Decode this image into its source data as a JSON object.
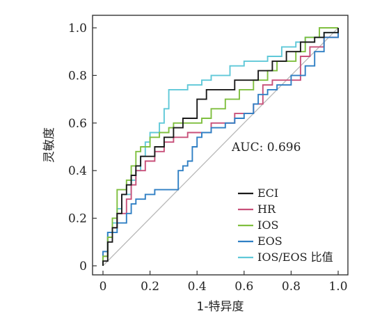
{
  "chart_data": {
    "type": "line",
    "xlabel": "1-特异度",
    "ylabel": "灵敏度",
    "xlim": [
      0,
      1
    ],
    "ylim": [
      0,
      1
    ],
    "xticks": [
      "0",
      "0.2",
      "0.4",
      "0.6",
      "0.8",
      "1.0"
    ],
    "yticks": [
      "0",
      "0.2",
      "0.4",
      "0.6",
      "0.8",
      "1.0"
    ],
    "annotation": "AUC: 0.696",
    "legend_position": "bottom-right",
    "reference_line": true,
    "series": [
      {
        "name": "ECI",
        "color": "#1a1a1a",
        "points": [
          [
            0,
            0
          ],
          [
            0,
            0.02
          ],
          [
            0.02,
            0.02
          ],
          [
            0.02,
            0.1
          ],
          [
            0.04,
            0.1
          ],
          [
            0.04,
            0.16
          ],
          [
            0.06,
            0.16
          ],
          [
            0.06,
            0.22
          ],
          [
            0.08,
            0.22
          ],
          [
            0.08,
            0.3
          ],
          [
            0.1,
            0.3
          ],
          [
            0.1,
            0.34
          ],
          [
            0.12,
            0.34
          ],
          [
            0.12,
            0.38
          ],
          [
            0.14,
            0.38
          ],
          [
            0.14,
            0.42
          ],
          [
            0.16,
            0.42
          ],
          [
            0.16,
            0.46
          ],
          [
            0.22,
            0.46
          ],
          [
            0.22,
            0.5
          ],
          [
            0.26,
            0.5
          ],
          [
            0.26,
            0.54
          ],
          [
            0.3,
            0.54
          ],
          [
            0.3,
            0.58
          ],
          [
            0.34,
            0.58
          ],
          [
            0.34,
            0.62
          ],
          [
            0.4,
            0.62
          ],
          [
            0.4,
            0.7
          ],
          [
            0.44,
            0.7
          ],
          [
            0.44,
            0.74
          ],
          [
            0.56,
            0.74
          ],
          [
            0.56,
            0.78
          ],
          [
            0.66,
            0.78
          ],
          [
            0.66,
            0.82
          ],
          [
            0.72,
            0.82
          ],
          [
            0.72,
            0.86
          ],
          [
            0.78,
            0.86
          ],
          [
            0.78,
            0.9
          ],
          [
            0.84,
            0.9
          ],
          [
            0.84,
            0.94
          ],
          [
            0.9,
            0.94
          ],
          [
            0.9,
            0.96
          ],
          [
            0.94,
            0.96
          ],
          [
            0.94,
            0.98
          ],
          [
            1,
            0.98
          ],
          [
            1,
            1
          ]
        ]
      },
      {
        "name": "HR",
        "color": "#c8507a",
        "points": [
          [
            0,
            0
          ],
          [
            0,
            0.04
          ],
          [
            0.02,
            0.04
          ],
          [
            0.02,
            0.12
          ],
          [
            0.04,
            0.12
          ],
          [
            0.04,
            0.16
          ],
          [
            0.06,
            0.16
          ],
          [
            0.06,
            0.22
          ],
          [
            0.1,
            0.22
          ],
          [
            0.1,
            0.28
          ],
          [
            0.12,
            0.28
          ],
          [
            0.12,
            0.34
          ],
          [
            0.14,
            0.34
          ],
          [
            0.14,
            0.4
          ],
          [
            0.18,
            0.4
          ],
          [
            0.18,
            0.44
          ],
          [
            0.22,
            0.44
          ],
          [
            0.22,
            0.48
          ],
          [
            0.26,
            0.48
          ],
          [
            0.26,
            0.52
          ],
          [
            0.3,
            0.52
          ],
          [
            0.3,
            0.54
          ],
          [
            0.36,
            0.54
          ],
          [
            0.36,
            0.56
          ],
          [
            0.46,
            0.56
          ],
          [
            0.46,
            0.6
          ],
          [
            0.56,
            0.6
          ],
          [
            0.56,
            0.64
          ],
          [
            0.64,
            0.64
          ],
          [
            0.64,
            0.68
          ],
          [
            0.68,
            0.68
          ],
          [
            0.68,
            0.76
          ],
          [
            0.72,
            0.76
          ],
          [
            0.72,
            0.78
          ],
          [
            0.84,
            0.78
          ],
          [
            0.84,
            0.88
          ],
          [
            0.88,
            0.88
          ],
          [
            0.88,
            0.92
          ],
          [
            0.94,
            0.92
          ],
          [
            0.94,
            0.96
          ],
          [
            1,
            0.96
          ],
          [
            1,
            1
          ]
        ]
      },
      {
        "name": "IOS",
        "color": "#7fbf3f",
        "points": [
          [
            0,
            0
          ],
          [
            0,
            0.04
          ],
          [
            0.02,
            0.04
          ],
          [
            0.02,
            0.12
          ],
          [
            0.04,
            0.12
          ],
          [
            0.04,
            0.2
          ],
          [
            0.06,
            0.2
          ],
          [
            0.06,
            0.32
          ],
          [
            0.1,
            0.32
          ],
          [
            0.1,
            0.36
          ],
          [
            0.12,
            0.36
          ],
          [
            0.12,
            0.42
          ],
          [
            0.14,
            0.42
          ],
          [
            0.14,
            0.48
          ],
          [
            0.16,
            0.48
          ],
          [
            0.16,
            0.5
          ],
          [
            0.2,
            0.5
          ],
          [
            0.2,
            0.54
          ],
          [
            0.24,
            0.54
          ],
          [
            0.24,
            0.56
          ],
          [
            0.28,
            0.56
          ],
          [
            0.28,
            0.58
          ],
          [
            0.3,
            0.58
          ],
          [
            0.3,
            0.6
          ],
          [
            0.42,
            0.6
          ],
          [
            0.42,
            0.62
          ],
          [
            0.46,
            0.62
          ],
          [
            0.46,
            0.66
          ],
          [
            0.52,
            0.66
          ],
          [
            0.52,
            0.7
          ],
          [
            0.58,
            0.7
          ],
          [
            0.58,
            0.74
          ],
          [
            0.64,
            0.74
          ],
          [
            0.64,
            0.78
          ],
          [
            0.7,
            0.78
          ],
          [
            0.7,
            0.82
          ],
          [
            0.74,
            0.82
          ],
          [
            0.74,
            0.86
          ],
          [
            0.82,
            0.86
          ],
          [
            0.82,
            0.9
          ],
          [
            0.86,
            0.9
          ],
          [
            0.86,
            0.96
          ],
          [
            0.92,
            0.96
          ],
          [
            0.92,
            1
          ],
          [
            1,
            1
          ]
        ]
      },
      {
        "name": "EOS",
        "color": "#2f7fc4",
        "points": [
          [
            0,
            0
          ],
          [
            0,
            0.06
          ],
          [
            0.02,
            0.06
          ],
          [
            0.02,
            0.14
          ],
          [
            0.06,
            0.14
          ],
          [
            0.06,
            0.18
          ],
          [
            0.1,
            0.18
          ],
          [
            0.1,
            0.22
          ],
          [
            0.12,
            0.22
          ],
          [
            0.12,
            0.26
          ],
          [
            0.14,
            0.26
          ],
          [
            0.14,
            0.28
          ],
          [
            0.18,
            0.28
          ],
          [
            0.18,
            0.3
          ],
          [
            0.22,
            0.3
          ],
          [
            0.22,
            0.32
          ],
          [
            0.32,
            0.32
          ],
          [
            0.32,
            0.4
          ],
          [
            0.34,
            0.4
          ],
          [
            0.34,
            0.42
          ],
          [
            0.36,
            0.42
          ],
          [
            0.36,
            0.44
          ],
          [
            0.38,
            0.44
          ],
          [
            0.38,
            0.5
          ],
          [
            0.4,
            0.5
          ],
          [
            0.4,
            0.54
          ],
          [
            0.42,
            0.54
          ],
          [
            0.42,
            0.56
          ],
          [
            0.46,
            0.56
          ],
          [
            0.46,
            0.58
          ],
          [
            0.52,
            0.58
          ],
          [
            0.52,
            0.6
          ],
          [
            0.56,
            0.6
          ],
          [
            0.56,
            0.62
          ],
          [
            0.6,
            0.62
          ],
          [
            0.6,
            0.64
          ],
          [
            0.64,
            0.64
          ],
          [
            0.64,
            0.68
          ],
          [
            0.66,
            0.68
          ],
          [
            0.66,
            0.72
          ],
          [
            0.7,
            0.72
          ],
          [
            0.7,
            0.74
          ],
          [
            0.74,
            0.74
          ],
          [
            0.74,
            0.76
          ],
          [
            0.8,
            0.76
          ],
          [
            0.8,
            0.8
          ],
          [
            0.86,
            0.8
          ],
          [
            0.86,
            0.84
          ],
          [
            0.9,
            0.84
          ],
          [
            0.9,
            0.9
          ],
          [
            0.94,
            0.9
          ],
          [
            0.94,
            0.96
          ],
          [
            1,
            0.96
          ],
          [
            1,
            1
          ]
        ]
      },
      {
        "name": "IOS/EOS 比值",
        "color": "#5fc8d8",
        "points": [
          [
            0,
            0
          ],
          [
            0,
            0.04
          ],
          [
            0.02,
            0.04
          ],
          [
            0.02,
            0.14
          ],
          [
            0.04,
            0.14
          ],
          [
            0.04,
            0.18
          ],
          [
            0.06,
            0.18
          ],
          [
            0.06,
            0.24
          ],
          [
            0.08,
            0.24
          ],
          [
            0.08,
            0.3
          ],
          [
            0.12,
            0.3
          ],
          [
            0.12,
            0.36
          ],
          [
            0.14,
            0.36
          ],
          [
            0.14,
            0.4
          ],
          [
            0.16,
            0.4
          ],
          [
            0.16,
            0.46
          ],
          [
            0.18,
            0.46
          ],
          [
            0.18,
            0.52
          ],
          [
            0.2,
            0.52
          ],
          [
            0.2,
            0.56
          ],
          [
            0.24,
            0.56
          ],
          [
            0.24,
            0.6
          ],
          [
            0.26,
            0.6
          ],
          [
            0.26,
            0.66
          ],
          [
            0.28,
            0.66
          ],
          [
            0.28,
            0.74
          ],
          [
            0.36,
            0.74
          ],
          [
            0.36,
            0.76
          ],
          [
            0.42,
            0.76
          ],
          [
            0.42,
            0.78
          ],
          [
            0.46,
            0.78
          ],
          [
            0.46,
            0.8
          ],
          [
            0.54,
            0.8
          ],
          [
            0.54,
            0.84
          ],
          [
            0.6,
            0.84
          ],
          [
            0.6,
            0.86
          ],
          [
            0.7,
            0.86
          ],
          [
            0.7,
            0.88
          ],
          [
            0.76,
            0.88
          ],
          [
            0.76,
            0.92
          ],
          [
            0.82,
            0.92
          ],
          [
            0.82,
            0.94
          ],
          [
            0.86,
            0.94
          ],
          [
            0.86,
            0.96
          ],
          [
            0.94,
            0.96
          ],
          [
            0.94,
            0.98
          ],
          [
            1,
            0.98
          ],
          [
            1,
            1
          ]
        ]
      }
    ]
  }
}
